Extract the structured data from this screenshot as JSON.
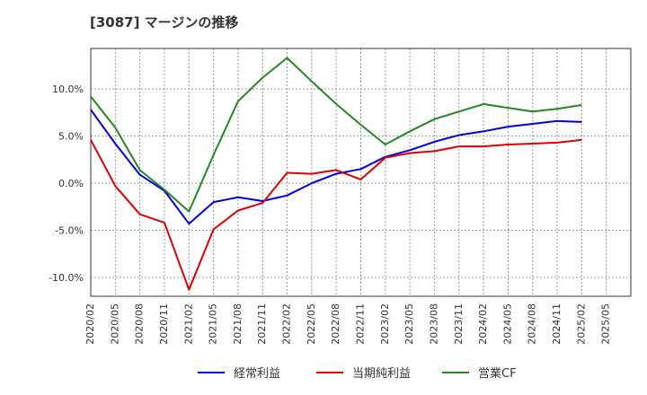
{
  "chart_data": {
    "type": "line",
    "title": "[3087]  マージンの推移",
    "xlabel": "",
    "ylabel": "",
    "x": [
      "2020/02",
      "2020/05",
      "2020/08",
      "2020/11",
      "2021/02",
      "2021/05",
      "2021/08",
      "2021/11",
      "2022/02",
      "2022/05",
      "2022/08",
      "2022/11",
      "2023/02",
      "2023/05",
      "2023/08",
      "2023/11",
      "2024/02",
      "2024/05",
      "2024/08",
      "2024/11",
      "2025/02"
    ],
    "x_ticks": [
      "2020/02",
      "2020/05",
      "2020/08",
      "2020/11",
      "2021/02",
      "2021/05",
      "2021/08",
      "2021/11",
      "2022/02",
      "2022/05",
      "2022/08",
      "2022/11",
      "2023/02",
      "2023/05",
      "2023/08",
      "2023/11",
      "2024/02",
      "2024/05",
      "2024/08",
      "2024/11",
      "2025/02",
      "2025/05"
    ],
    "y_ticks": [
      10,
      5,
      0,
      -5,
      -10
    ],
    "y_tick_labels": [
      "10.0%",
      "5.0%",
      "0.0%",
      "-5.0%",
      "-10.0%"
    ],
    "ylim": [
      -12,
      14.3
    ],
    "grid": true,
    "legend_position": "bottom",
    "series": [
      {
        "name": "経常利益",
        "color": "#0000dd",
        "values": [
          7.8,
          4.2,
          0.9,
          -0.8,
          -4.3,
          -2.0,
          -1.5,
          -1.9,
          -1.3,
          0.0,
          1.0,
          1.5,
          2.8,
          3.5,
          4.4,
          5.1,
          5.5,
          6.0,
          6.3,
          6.6,
          6.5
        ]
      },
      {
        "name": "当期純利益",
        "color": "#dd0000",
        "values": [
          4.6,
          -0.3,
          -3.3,
          -4.2,
          -11.3,
          -4.9,
          -2.9,
          -2.1,
          1.1,
          1.0,
          1.4,
          0.4,
          2.7,
          3.2,
          3.4,
          3.9,
          3.9,
          4.1,
          4.2,
          4.3,
          4.6
        ]
      },
      {
        "name": "営業CF",
        "color": "#228822",
        "values": [
          9.2,
          5.9,
          1.4,
          -0.7,
          -3.0,
          3.0,
          8.7,
          11.2,
          13.3,
          10.8,
          8.4,
          6.2,
          4.1,
          5.5,
          6.8,
          7.6,
          8.4,
          8.0,
          7.6,
          7.9,
          8.3
        ]
      }
    ]
  }
}
